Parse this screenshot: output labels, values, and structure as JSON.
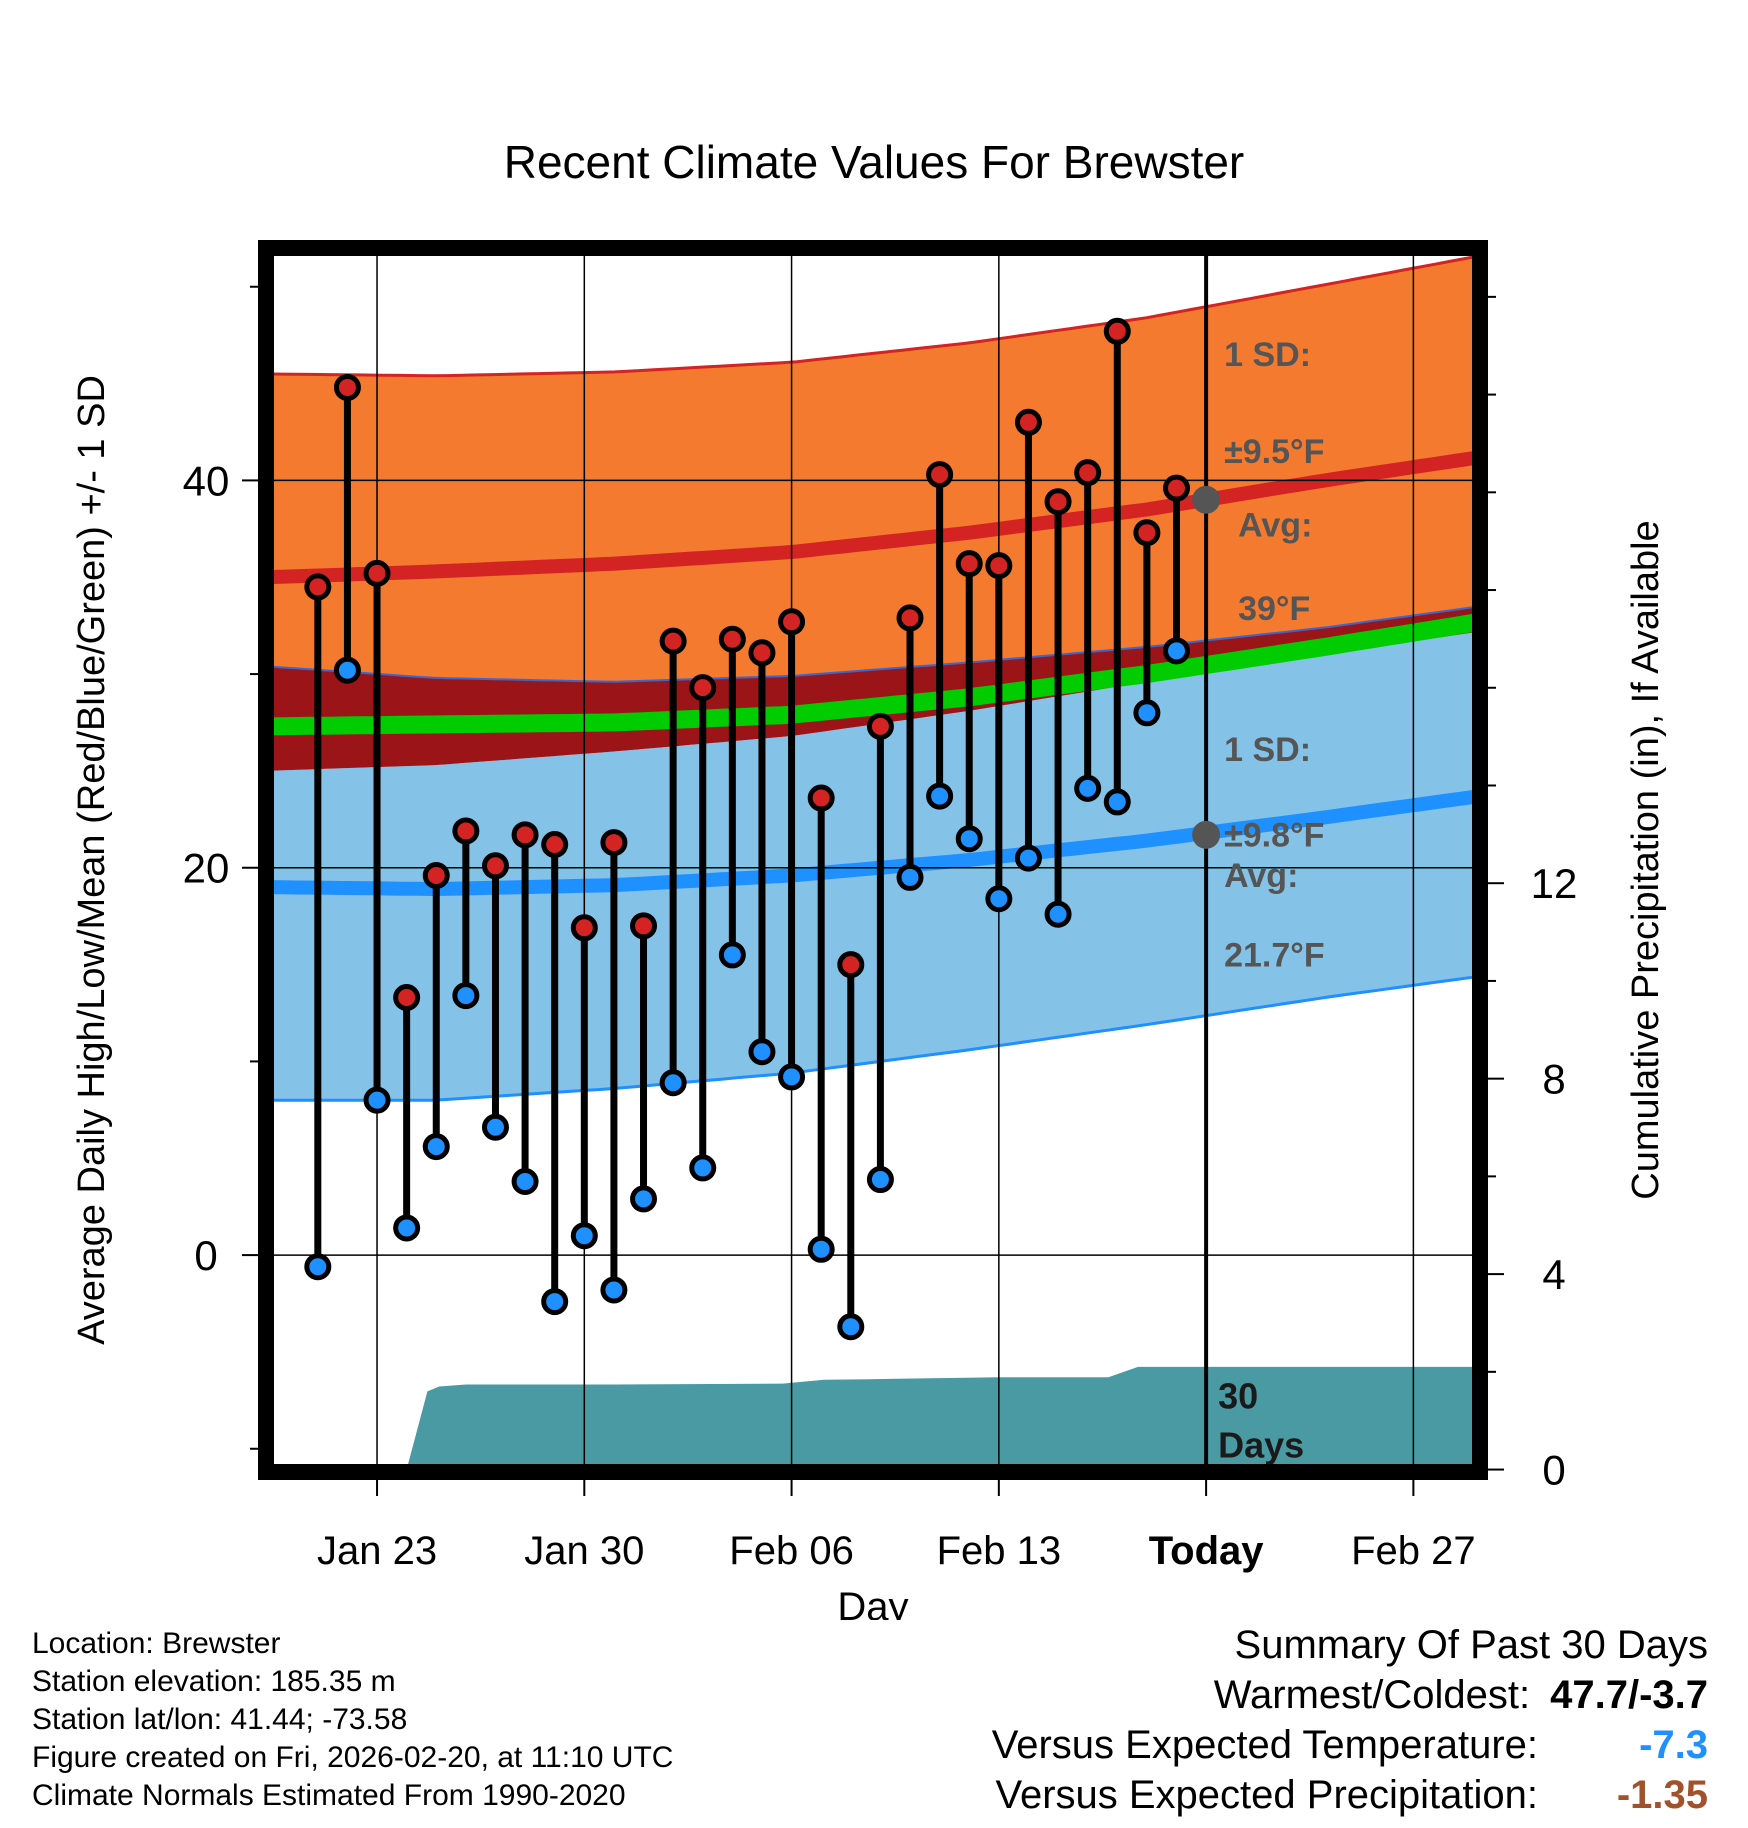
{
  "chart_data": {
    "type": "climate-range",
    "title": "Recent Climate Values For Brewster",
    "xlabel": "Day",
    "ylabel_left": "Average Daily High/Low/Mean (Red/Blue/Green) +/- 1 SD",
    "ylabel_right": "Cumulative Precipitation (in), If Available",
    "x_ticks": [
      {
        "day": 2,
        "label": "Jan 23"
      },
      {
        "day": 9,
        "label": "Jan 30"
      },
      {
        "day": 16,
        "label": "Feb 06"
      },
      {
        "day": 23,
        "label": "Feb 13"
      },
      {
        "day": 30,
        "label": "Today"
      },
      {
        "day": 37,
        "label": "Feb 27"
      }
    ],
    "xlim": [
      -1.75,
      39.25
    ],
    "ylim": [
      -11.2,
      52
    ],
    "y_ticks": [
      0,
      20,
      40
    ],
    "y2lim": [
      -0.05,
      25
    ],
    "y2_ticks": [
      0,
      4,
      8,
      12
    ],
    "today_day": 30,
    "observations": {
      "high": [
        34.5,
        44.8,
        35.2,
        13.3,
        19.6,
        21.9,
        20.1,
        21.7,
        21.2,
        16.9,
        21.3,
        17.0,
        31.7,
        29.3,
        31.8,
        31.1,
        32.7,
        23.6,
        15.0,
        27.3,
        32.9,
        40.3,
        35.7,
        35.6,
        43.0,
        38.9,
        40.4,
        47.7,
        37.3,
        39.6
      ],
      "low": [
        -0.6,
        30.2,
        8.0,
        1.4,
        5.6,
        13.4,
        6.6,
        3.8,
        -2.4,
        1.0,
        -1.8,
        2.9,
        8.9,
        4.5,
        15.5,
        10.5,
        9.2,
        0.3,
        -3.7,
        3.9,
        19.5,
        23.7,
        21.5,
        18.4,
        20.5,
        17.6,
        24.1,
        23.4,
        28.0,
        31.2
      ]
    },
    "normals": {
      "days": [
        -1.75,
        4,
        10,
        16,
        22,
        28,
        34,
        39.25
      ],
      "high_avg": [
        35.0,
        35.3,
        35.7,
        36.3,
        37.3,
        38.5,
        40.0,
        41.2
      ],
      "high_sd_upper": [
        45.5,
        45.4,
        45.6,
        46.1,
        47.1,
        48.4,
        50.1,
        51.6
      ],
      "high_sd_lower": [
        30.4,
        29.8,
        29.6,
        29.9,
        30.6,
        31.4,
        32.4,
        33.5
      ],
      "low_avg": [
        19.0,
        18.9,
        19.1,
        19.6,
        20.4,
        21.4,
        22.6,
        23.7
      ],
      "low_sd_upper": [
        25.0,
        25.3,
        26.0,
        26.8,
        28.1,
        29.6,
        31.0,
        32.2
      ],
      "low_sd_lower": [
        8.0,
        8.0,
        8.6,
        9.4,
        10.6,
        11.9,
        13.3,
        14.4
      ],
      "mean_avg": [
        27.3,
        27.4,
        27.5,
        27.9,
        28.8,
        30.0,
        31.4,
        32.7
      ]
    },
    "precip_cumulative": {
      "days": [
        -1.75,
        3,
        3.7,
        4.1,
        5,
        10,
        15.7,
        17.1,
        18.6,
        23,
        26.7,
        27.7,
        39.25
      ],
      "values": [
        0,
        0,
        1.6,
        1.7,
        1.74,
        1.74,
        1.76,
        1.84,
        1.85,
        1.89,
        1.89,
        2.1,
        2.1
      ]
    },
    "annotations": {
      "high_sd_line1": "1 SD:",
      "high_sd_line2": "±9.5°F",
      "high_avg_line1": "Avg:",
      "high_avg_line2": "39°F",
      "low_sd_line1": "1 SD:",
      "low_sd_line2": "±9.8°F",
      "low_avg_line1": "Avg:",
      "low_avg_line2": "21.7°F",
      "days_line1": "30",
      "days_line2": "Days",
      "today_high_avg": 39.0,
      "today_low_avg": 21.7
    },
    "colors": {
      "high_band": "#f47a2f",
      "high_band_edge": "#d32323",
      "high_avg_line": "#d32323",
      "low_band": "#85c2e8",
      "low_band_edge": "#1e90ff",
      "low_avg_line": "#1e90ff",
      "overlap_band": "#9b1518",
      "mean_line": "#00cc00",
      "precip_fill": "#4a9aa3",
      "high_marker": "#d32323",
      "low_marker": "#1e90ff",
      "annotation": "#555555",
      "today_dot": "#555555"
    }
  },
  "info": {
    "location": "Location: Brewster",
    "elevation": "Station elevation: 185.35 m",
    "latlon": "Station lat/lon: 41.44; -73.58",
    "created": "Figure created on Fri, 2026-02-20, at 11:10 UTC",
    "normals": "Climate Normals Estimated From 1990-2020"
  },
  "summary": {
    "heading": "Summary Of Past 30 Days",
    "warmest_label": "Warmest/Coldest:",
    "warmest_value": "47.7/-3.7",
    "temp_label": "Versus Expected Temperature:",
    "temp_value": "-7.3",
    "temp_color": "#1e90ff",
    "precip_label": "Versus Expected Precipitation:",
    "precip_value": "-1.35",
    "precip_color": "#a0522d"
  }
}
